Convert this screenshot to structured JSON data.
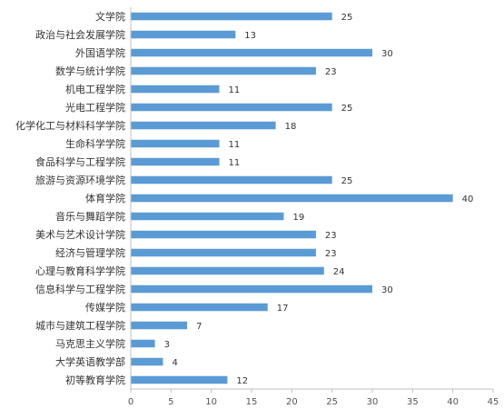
{
  "chart_data": {
    "type": "bar",
    "orientation": "horizontal",
    "title": "",
    "xlabel": "",
    "ylabel": "",
    "categories": [
      "文学院",
      "政治与社会发展学院",
      "外国语学院",
      "数学与统计学院",
      "机电工程学院",
      "光电工程学院",
      "化学化工与材料科学学院",
      "生命科学学院",
      "食品科学与工程学院",
      "旅游与资源环境学院",
      "体育学院",
      "音乐与舞蹈学院",
      "美术与艺术设计学院",
      "经济与管理学院",
      "心理与教育科学学院",
      "信息科学与工程学院",
      "传媒学院",
      "城市与建筑工程学院",
      "马克思主义学院",
      "大学英语教学部",
      "初等教育学院"
    ],
    "values": [
      25,
      13,
      30,
      23,
      11,
      25,
      18,
      11,
      11,
      25,
      40,
      19,
      23,
      23,
      24,
      30,
      17,
      7,
      3,
      4,
      12
    ],
    "xlim": [
      0,
      45
    ],
    "xticks": [
      0,
      5,
      10,
      15,
      20,
      25,
      30,
      35,
      40,
      45
    ],
    "grid": false,
    "legend": "none",
    "bar_color": "#5b9bd5",
    "data_labels": true
  }
}
